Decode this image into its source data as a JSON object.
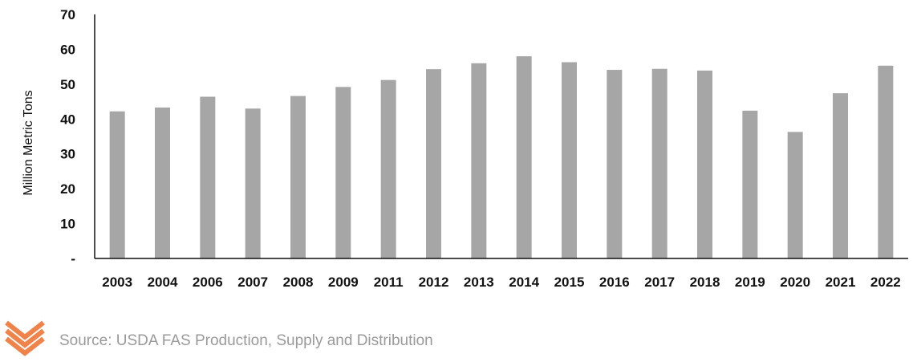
{
  "chart_data": {
    "type": "bar",
    "title": "",
    "xlabel": "",
    "ylabel": "Million Metric Tons",
    "ylim": [
      0,
      70
    ],
    "yticks": [
      0,
      10,
      20,
      30,
      40,
      50,
      60,
      70
    ],
    "ytick_labels": [
      "-",
      "10",
      "20",
      "30",
      "40",
      "50",
      "60",
      "70"
    ],
    "grid": false,
    "bar_color": "#a6a6a6",
    "categories": [
      "2003",
      "2004",
      "2006",
      "2007",
      "2008",
      "2009",
      "2011",
      "2012",
      "2013",
      "2014",
      "2015",
      "2016",
      "2017",
      "2018",
      "2019",
      "2020",
      "2021",
      "2022"
    ],
    "values": [
      42.2,
      43.3,
      46.4,
      43.0,
      46.6,
      49.2,
      51.2,
      54.3,
      56.0,
      58.0,
      56.3,
      54.1,
      54.4,
      53.9,
      42.4,
      36.3,
      47.4,
      55.3
    ]
  },
  "footer": {
    "source_text": "Source: USDA FAS Production, Supply and Distribution",
    "logo_icon": "chevron-stripes-logo",
    "logo_color": "#f0834a"
  }
}
